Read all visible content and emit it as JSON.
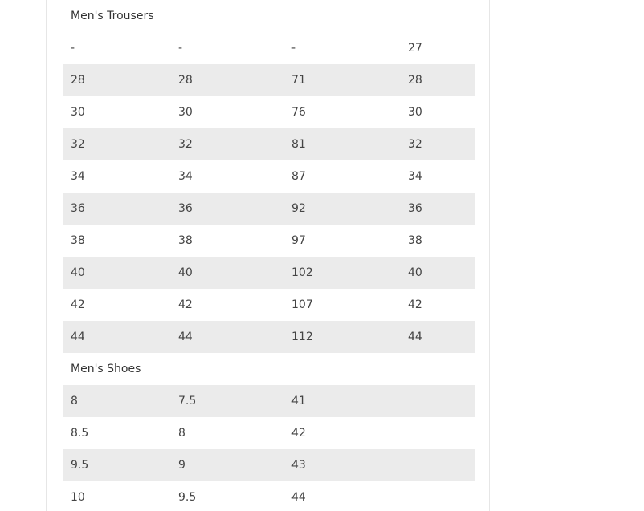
{
  "trousers": {
    "title": "Men's Trousers",
    "rows": [
      [
        "-",
        "-",
        "-",
        "27"
      ],
      [
        "28",
        "28",
        "71",
        "28"
      ],
      [
        "30",
        "30",
        "76",
        "30"
      ],
      [
        "32",
        "32",
        "81",
        "32"
      ],
      [
        "34",
        "34",
        "87",
        "34"
      ],
      [
        "36",
        "36",
        "92",
        "36"
      ],
      [
        "38",
        "38",
        "97",
        "38"
      ],
      [
        "40",
        "40",
        "102",
        "40"
      ],
      [
        "42",
        "42",
        "107",
        "42"
      ],
      [
        "44",
        "44",
        "112",
        "44"
      ]
    ]
  },
  "shoes": {
    "title": "Men's Shoes",
    "rows": [
      [
        "8",
        "7.5",
        "41",
        ""
      ],
      [
        "8.5",
        "8",
        "42",
        ""
      ],
      [
        "9.5",
        "9",
        "43",
        ""
      ],
      [
        "10",
        "9.5",
        "44",
        ""
      ]
    ]
  },
  "colors": {
    "shaded_row": "#ebebeb",
    "text": "#444444",
    "panel_border": "#e6e6e6"
  }
}
